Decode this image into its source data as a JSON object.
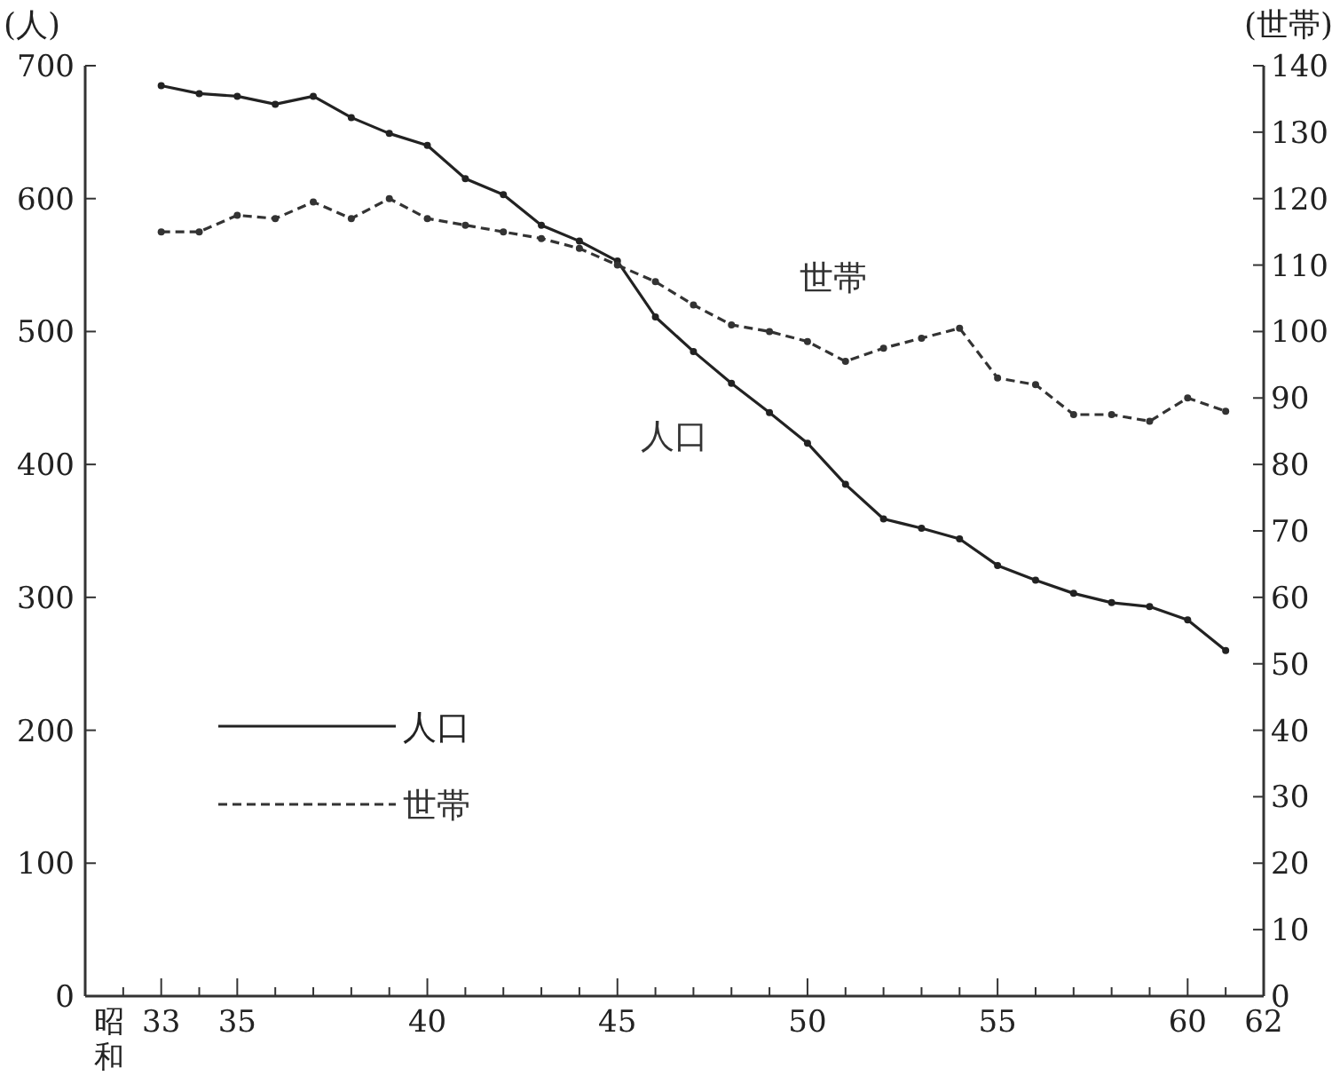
{
  "chart_data": {
    "type": "line",
    "ylabel": "(人)",
    "y2label": "(世帯)",
    "xlabel": "昭和",
    "x": [
      33,
      34,
      35,
      36,
      37,
      38,
      39,
      40,
      41,
      42,
      43,
      44,
      45,
      46,
      47,
      48,
      49,
      50,
      51,
      52,
      53,
      54,
      55,
      56,
      57,
      58,
      59,
      60,
      61
    ],
    "series": [
      {
        "name": "人口",
        "color": "#222222",
        "line_style": "solid",
        "values": [
          685,
          679,
          677,
          671,
          677,
          661,
          649,
          640,
          615,
          603,
          580,
          568,
          553,
          511,
          485,
          461,
          439,
          416,
          385,
          359,
          352,
          344,
          324,
          313,
          303,
          296,
          293,
          283,
          260
        ]
      },
      {
        "name": "世帯",
        "color": "#333333",
        "line_style": "dashed",
        "axis": "y2",
        "values": [
          115,
          115,
          117.5,
          117,
          119.5,
          117,
          120,
          117,
          116,
          115,
          114,
          112.5,
          110,
          107.5,
          104,
          101,
          100,
          98.5,
          95.5,
          97.5,
          99,
          100.5,
          93,
          92,
          87.5,
          87.5,
          86.5,
          90,
          88
        ]
      }
    ],
    "xlim": [
      31,
      62
    ],
    "xticks": [
      {
        "value": 32,
        "label": null
      },
      {
        "value": 33,
        "label": "33"
      },
      {
        "value": 34,
        "label": null
      },
      35,
      {
        "value": 36,
        "label": null
      },
      {
        "value": 37,
        "label": null
      },
      {
        "value": 38,
        "label": null
      },
      {
        "value": 39,
        "label": null
      },
      40,
      {
        "value": 41,
        "label": null
      },
      {
        "value": 42,
        "label": null
      },
      {
        "value": 43,
        "label": null
      },
      {
        "value": 44,
        "label": null
      },
      45,
      {
        "value": 46,
        "label": null
      },
      {
        "value": 47,
        "label": null
      },
      {
        "value": 48,
        "label": null
      },
      {
        "value": 49,
        "label": null
      },
      50,
      {
        "value": 51,
        "label": null
      },
      {
        "value": 52,
        "label": null
      },
      {
        "value": 53,
        "label": null
      },
      {
        "value": 54,
        "label": null
      },
      55,
      {
        "value": 56,
        "label": null
      },
      {
        "value": 57,
        "label": null
      },
      {
        "value": 58,
        "label": null
      },
      {
        "value": 59,
        "label": null
      },
      60,
      {
        "value": 61,
        "label": null
      },
      62
    ],
    "ylim": [
      0,
      700
    ],
    "yticks": [
      0,
      100,
      200,
      300,
      400,
      500,
      600,
      700
    ],
    "y2lim": [
      0,
      140
    ],
    "y2ticks": [
      0,
      10,
      20,
      30,
      40,
      50,
      60,
      70,
      80,
      90,
      100,
      110,
      120,
      130,
      140
    ],
    "annotations": [
      "人口",
      "世帯"
    ],
    "marker": "circle",
    "legend": "left"
  }
}
